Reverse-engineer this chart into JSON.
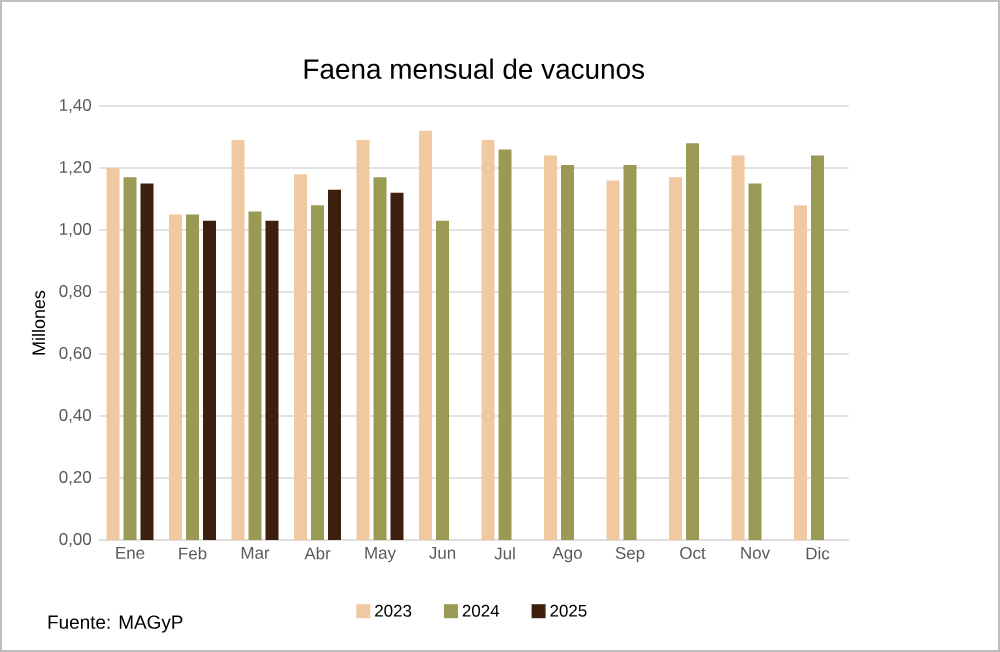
{
  "chart_data": {
    "type": "bar",
    "title": "Faena mensual de vacunos",
    "ylabel": "Millones",
    "categories": [
      "Ene",
      "Feb",
      "Mar",
      "Abr",
      "May",
      "Jun",
      "Jul",
      "Ago",
      "Sep",
      "Oct",
      "Nov",
      "Dic"
    ],
    "series": [
      {
        "name": "2023",
        "color": "#f1c9a0",
        "values": [
          1.2,
          1.05,
          1.29,
          1.18,
          1.29,
          1.32,
          1.29,
          1.24,
          1.16,
          1.17,
          1.24,
          1.08
        ]
      },
      {
        "name": "2024",
        "color": "#9b9a55",
        "values": [
          1.17,
          1.05,
          1.06,
          1.08,
          1.17,
          1.03,
          1.26,
          1.21,
          1.21,
          1.28,
          1.15,
          1.24
        ]
      },
      {
        "name": "2025",
        "color": "#3d1f10",
        "values": [
          1.15,
          1.03,
          1.03,
          1.13,
          1.12,
          null,
          null,
          null,
          null,
          null,
          null,
          null
        ]
      }
    ],
    "ylim": [
      0,
      1.4
    ],
    "yticks": [
      {
        "value": 0,
        "label": "0,00"
      },
      {
        "value": 0.2,
        "label": "0,20"
      },
      {
        "value": 0.4,
        "label": "0,40"
      },
      {
        "value": 0.6,
        "label": "0,60"
      },
      {
        "value": 0.8,
        "label": "0,80"
      },
      {
        "value": 1.0,
        "label": "1,00"
      },
      {
        "value": 1.2,
        "label": "1,20"
      },
      {
        "value": 1.4,
        "label": "1,40"
      }
    ],
    "grid": "y",
    "legend": "bottom",
    "annotations": [
      "Fuente: MAGyP"
    ]
  }
}
